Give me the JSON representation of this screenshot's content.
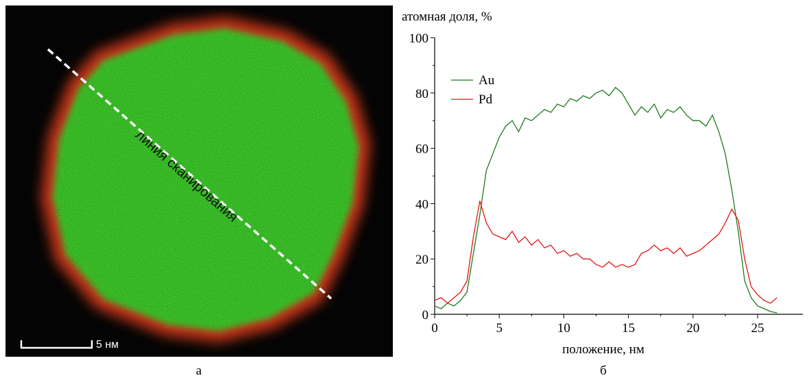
{
  "image_panel": {
    "scan_line_label": "линия сканирования",
    "scale_bar_label": "5 нм",
    "caption": "а"
  },
  "chart_data": {
    "type": "line",
    "caption": "б",
    "y_label": "атомная доля, %",
    "x_label": "положение, нм",
    "xlim": [
      0,
      28.5
    ],
    "ylim": [
      0,
      100
    ],
    "xticks": [
      0,
      5,
      10,
      15,
      20,
      25
    ],
    "yticks": [
      0,
      20,
      40,
      60,
      80,
      100
    ],
    "legend": "upper left",
    "x": [
      0,
      0.5,
      1,
      1.5,
      2,
      2.5,
      3,
      3.5,
      4,
      4.5,
      5,
      5.5,
      6,
      6.5,
      7,
      7.5,
      8,
      8.5,
      9,
      9.5,
      10,
      10.5,
      11,
      11.5,
      12,
      12.5,
      13,
      13.5,
      14,
      14.5,
      15,
      15.5,
      16,
      16.5,
      17,
      17.5,
      18,
      18.5,
      19,
      19.5,
      20,
      20.5,
      21,
      21.5,
      22,
      22.5,
      23,
      23.5,
      24,
      24.5,
      25,
      25.5,
      26,
      26.5
    ],
    "series": [
      {
        "name": "Au",
        "color": "#1a7a1a",
        "values": [
          3,
          2,
          4,
          3,
          5,
          8,
          22,
          36,
          52,
          58,
          64,
          68,
          70,
          66,
          71,
          70,
          72,
          74,
          73,
          76,
          75,
          78,
          77,
          79,
          78,
          80,
          81,
          79,
          82,
          80,
          76,
          72,
          75,
          73,
          76,
          71,
          74,
          73,
          75,
          72,
          70,
          70,
          68,
          72,
          66,
          58,
          45,
          30,
          12,
          6,
          3,
          2,
          1,
          0.5
        ]
      },
      {
        "name": "Pd",
        "color": "#e8110f",
        "values": [
          5,
          6,
          4,
          6,
          8,
          12,
          28,
          41,
          33,
          29,
          28,
          27,
          30,
          26,
          28,
          25,
          27,
          24,
          25,
          22,
          23,
          21,
          22,
          20,
          20,
          18,
          17,
          19,
          17,
          18,
          17,
          18,
          22,
          23,
          25,
          23,
          24,
          22,
          24,
          21,
          22,
          23,
          25,
          27,
          29,
          33,
          38,
          34,
          20,
          10,
          7,
          5,
          4,
          6
        ]
      }
    ]
  }
}
